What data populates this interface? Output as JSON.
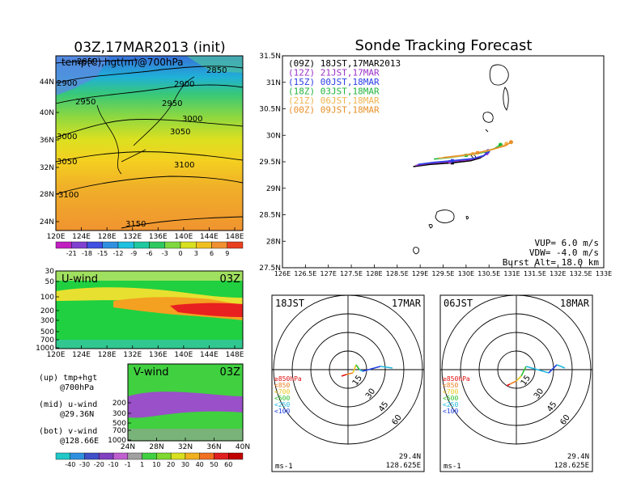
{
  "chart_data": [
    {
      "type": "heatmap",
      "title": "03Z,17MAR2013 (init)",
      "subtitle": "temp(C),hgt(m)@700hPa",
      "x_ticks": [
        "120E",
        "124E",
        "128E",
        "132E",
        "136E",
        "140E",
        "144E",
        "148E"
      ],
      "y_ticks": [
        "24N",
        "28N",
        "32N",
        "36N",
        "40N",
        "44N"
      ],
      "contours": [
        "2850",
        "2850",
        "2900",
        "2900",
        "2950",
        "2950",
        "3000",
        "3000",
        "3050",
        "3050",
        "3100",
        "3100",
        "3150"
      ],
      "colorbar": [
        "-21",
        "-18",
        "-15",
        "-12",
        "-9",
        "-6",
        "-3",
        "0",
        "3",
        "6",
        "9"
      ]
    },
    {
      "type": "heatmap",
      "title": "U-wind",
      "time": "03Z",
      "x_ticks": [
        "120E",
        "124E",
        "128E",
        "132E",
        "136E",
        "140E",
        "144E",
        "148E"
      ],
      "y_ticks": [
        "30",
        "50",
        "100",
        "200",
        "300",
        "500",
        "700",
        "1000"
      ]
    },
    {
      "type": "heatmap",
      "title": "V-wind",
      "time": "03Z",
      "x_ticks": [
        "24N",
        "28N",
        "32N",
        "36N",
        "40N"
      ],
      "y_ticks": [
        "200",
        "300",
        "500",
        "700",
        "1000"
      ],
      "colorbar": [
        "-40",
        "-30",
        "-20",
        "-10",
        "-1",
        "1",
        "10",
        "20",
        "30",
        "40",
        "50",
        "60"
      ]
    },
    {
      "type": "line",
      "title": "Sonde Tracking Forecast",
      "x_ticks": [
        "126E",
        "126.5E",
        "127E",
        "127.5E",
        "128E",
        "128.5E",
        "129E",
        "129.5E",
        "130E",
        "130.5E",
        "131E",
        "131.5E",
        "132E",
        "132.5E",
        "133E"
      ],
      "y_ticks": [
        "27.5N",
        "28N",
        "28.5N",
        "29N",
        "29.5N",
        "30N",
        "30.5N",
        "31N",
        "31.5N"
      ],
      "xlim": [
        126,
        133
      ],
      "ylim": [
        27.5,
        31.5
      ],
      "series": [
        {
          "name": "(09Z)  18JST,17MAR2013",
          "color": "#000000",
          "x": [
            128.85,
            129.2,
            129.7,
            130.1,
            130.3,
            130.4,
            130.45
          ],
          "y": [
            29.41,
            29.45,
            29.48,
            29.52,
            29.57,
            29.62,
            29.68
          ]
        },
        {
          "name": "(12Z)  21JST,17MAR",
          "color": "#9b30c8",
          "x": [
            128.9,
            129.2,
            129.65,
            130.1,
            130.35,
            130.45
          ],
          "y": [
            29.43,
            29.47,
            29.5,
            29.54,
            29.6,
            29.66
          ]
        },
        {
          "name": "(15Z)  00JST,18MAR",
          "color": "#2a3ee6",
          "x": [
            128.95,
            129.3,
            129.7,
            130.15,
            130.4,
            130.48
          ],
          "y": [
            29.45,
            29.49,
            29.52,
            29.56,
            29.62,
            29.7
          ]
        },
        {
          "name": "(18Z)  03JST,18MAR",
          "color": "#22b43a",
          "x": [
            129.3,
            129.65,
            130.0,
            130.4,
            130.62,
            130.75
          ],
          "y": [
            29.55,
            29.58,
            29.62,
            29.68,
            29.75,
            29.82
          ]
        },
        {
          "name": "(21Z)  06JST,18MAR",
          "color": "#f0b450",
          "x": [
            129.4,
            129.8,
            130.15,
            130.5,
            130.75,
            130.88
          ],
          "y": [
            29.57,
            29.6,
            29.65,
            29.71,
            29.78,
            29.84
          ]
        },
        {
          "name": "(00Z)  09JST,18MAR",
          "color": "#e8902a",
          "x": [
            129.5,
            129.9,
            130.25,
            130.6,
            130.85,
            130.98
          ],
          "y": [
            29.58,
            29.62,
            29.67,
            29.74,
            29.8,
            29.87
          ]
        }
      ],
      "annotations": [
        "VUP=  6.0  m/s",
        "VDW= -4.0  m/s",
        "Burst Alt=  18.0  km"
      ]
    },
    {
      "type": "scatter",
      "title_left": "18JST",
      "title_right": "17MAR",
      "ring_labels": [
        "15",
        "30",
        "45",
        "60"
      ],
      "units": "ms-1",
      "location": [
        "29.4N",
        "128.625E"
      ],
      "levels": [
        {
          "label": "≥850hPa",
          "color": "#e01010"
        },
        {
          "label": "<850",
          "color": "#f08020"
        },
        {
          "label": "<700",
          "color": "#e8c820"
        },
        {
          "label": "<500",
          "color": "#30c030"
        },
        {
          "label": "<250",
          "color": "#20b8e0"
        },
        {
          "label": "<100",
          "color": "#2040e0"
        }
      ]
    },
    {
      "type": "scatter",
      "title_left": "06JST",
      "title_right": "18MAR",
      "ring_labels": [
        "15",
        "30",
        "45",
        "60"
      ],
      "units": "ms-1",
      "location": [
        "29.4N",
        "128.625E"
      ],
      "levels": [
        {
          "label": "≥850hPa",
          "color": "#e01010"
        },
        {
          "label": "<850",
          "color": "#f08020"
        },
        {
          "label": "<700",
          "color": "#e8c820"
        },
        {
          "label": "<500",
          "color": "#30c030"
        },
        {
          "label": "<250",
          "color": "#20b8e0"
        },
        {
          "label": "<100",
          "color": "#2040e0"
        }
      ]
    }
  ],
  "panel_legend": [
    {
      "line1": "(up) tmp+hgt",
      "line2": "@700hPa"
    },
    {
      "line1": "(mid) u-wind",
      "line2": "@29.36N"
    },
    {
      "line1": "(bot) v-wind",
      "line2": "@128.66E"
    }
  ]
}
